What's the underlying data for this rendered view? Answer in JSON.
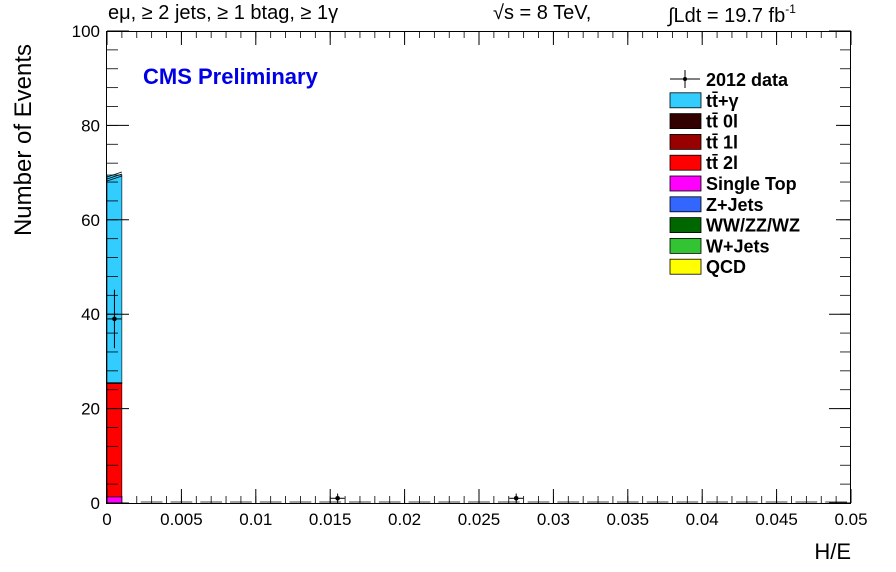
{
  "header": {
    "selection": "eμ, ≥ 2 jets, ≥ 1 btag, ≥ 1γ",
    "energy": "√s = 8 TeV,",
    "lumi": "∫Ldt = 19.7 fb",
    "lumi_sup": "-1"
  },
  "chart_data": {
    "type": "bar",
    "histogram": true,
    "stacked": true,
    "title": "",
    "xlabel": "H/E",
    "ylabel": "Number of Events",
    "annotation": "CMS Preliminary",
    "annotation_color": "#0000e6",
    "xlim": [
      0,
      0.05
    ],
    "ylim": [
      0,
      100
    ],
    "x_ticks": [
      "0",
      "0.005",
      "0.01",
      "0.015",
      "0.02",
      "0.025",
      "0.03",
      "0.035",
      "0.04",
      "0.045",
      "0.05"
    ],
    "y_ticks": [
      "0",
      "20",
      "40",
      "60",
      "80",
      "100"
    ],
    "legend_position": "top-right",
    "bin_edges": [
      0,
      0.001
    ],
    "series": [
      {
        "name": "QCD",
        "color": "#ffff00",
        "values": [
          0
        ]
      },
      {
        "name": "W+Jets",
        "color": "#33c433",
        "values": [
          0
        ]
      },
      {
        "name": "WW/ZZ/WZ",
        "color": "#006600",
        "values": [
          0
        ]
      },
      {
        "name": "Z+Jets",
        "color": "#3366ff",
        "values": [
          0
        ]
      },
      {
        "name": "Single Top",
        "color": "#ff00ff",
        "values": [
          1.3
        ]
      },
      {
        "name": "tt̄ 2l",
        "color": "#ff0000",
        "values": [
          24
        ]
      },
      {
        "name": "tt̄ 1l",
        "color": "#990000",
        "values": [
          0.2
        ]
      },
      {
        "name": "tt̄ 0l",
        "color": "#330000",
        "values": [
          0
        ]
      },
      {
        "name": "tt̄+γ",
        "color": "#33ccff",
        "values": [
          44
        ]
      }
    ],
    "data_series": {
      "name": "2012 data",
      "points": [
        {
          "x": 0.0005,
          "y": 39,
          "err": 6.2
        },
        {
          "x": 0.0155,
          "y": 1,
          "err": 1
        },
        {
          "x": 0.0275,
          "y": 1,
          "err": 1
        }
      ]
    },
    "legend_order": [
      "2012 data",
      "tt̄+γ",
      "tt̄ 0l",
      "tt̄ 1l",
      "tt̄ 2l",
      "Single Top",
      "Z+Jets",
      "WW/ZZ/WZ",
      "W+Jets",
      "QCD"
    ]
  }
}
